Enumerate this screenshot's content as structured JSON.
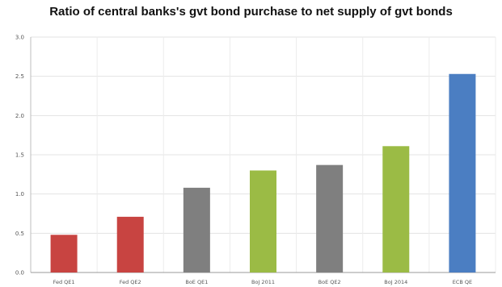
{
  "chart_data": {
    "type": "bar",
    "title": "Ratio of central banks's gvt bond purchase to net supply of gvt bonds",
    "xlabel": "",
    "ylabel": "",
    "ylim": [
      0,
      3.0
    ],
    "yticks": [
      "0.0",
      "0.5",
      "1.0",
      "1.5",
      "2.0",
      "2.5",
      "3.0"
    ],
    "grid": true,
    "categories": [
      "Fed QE1",
      "Fed QE2",
      "BoE QE1",
      "BoJ 2011",
      "BoE QE2",
      "BoJ 2014",
      "ECB QE"
    ],
    "values": [
      0.48,
      0.71,
      1.08,
      1.3,
      1.37,
      1.61,
      2.53
    ],
    "bar_colors": [
      "#c84441",
      "#c84441",
      "#7f7f7f",
      "#9bbb45",
      "#7f7f7f",
      "#9bbb45",
      "#4b7ec2"
    ]
  }
}
